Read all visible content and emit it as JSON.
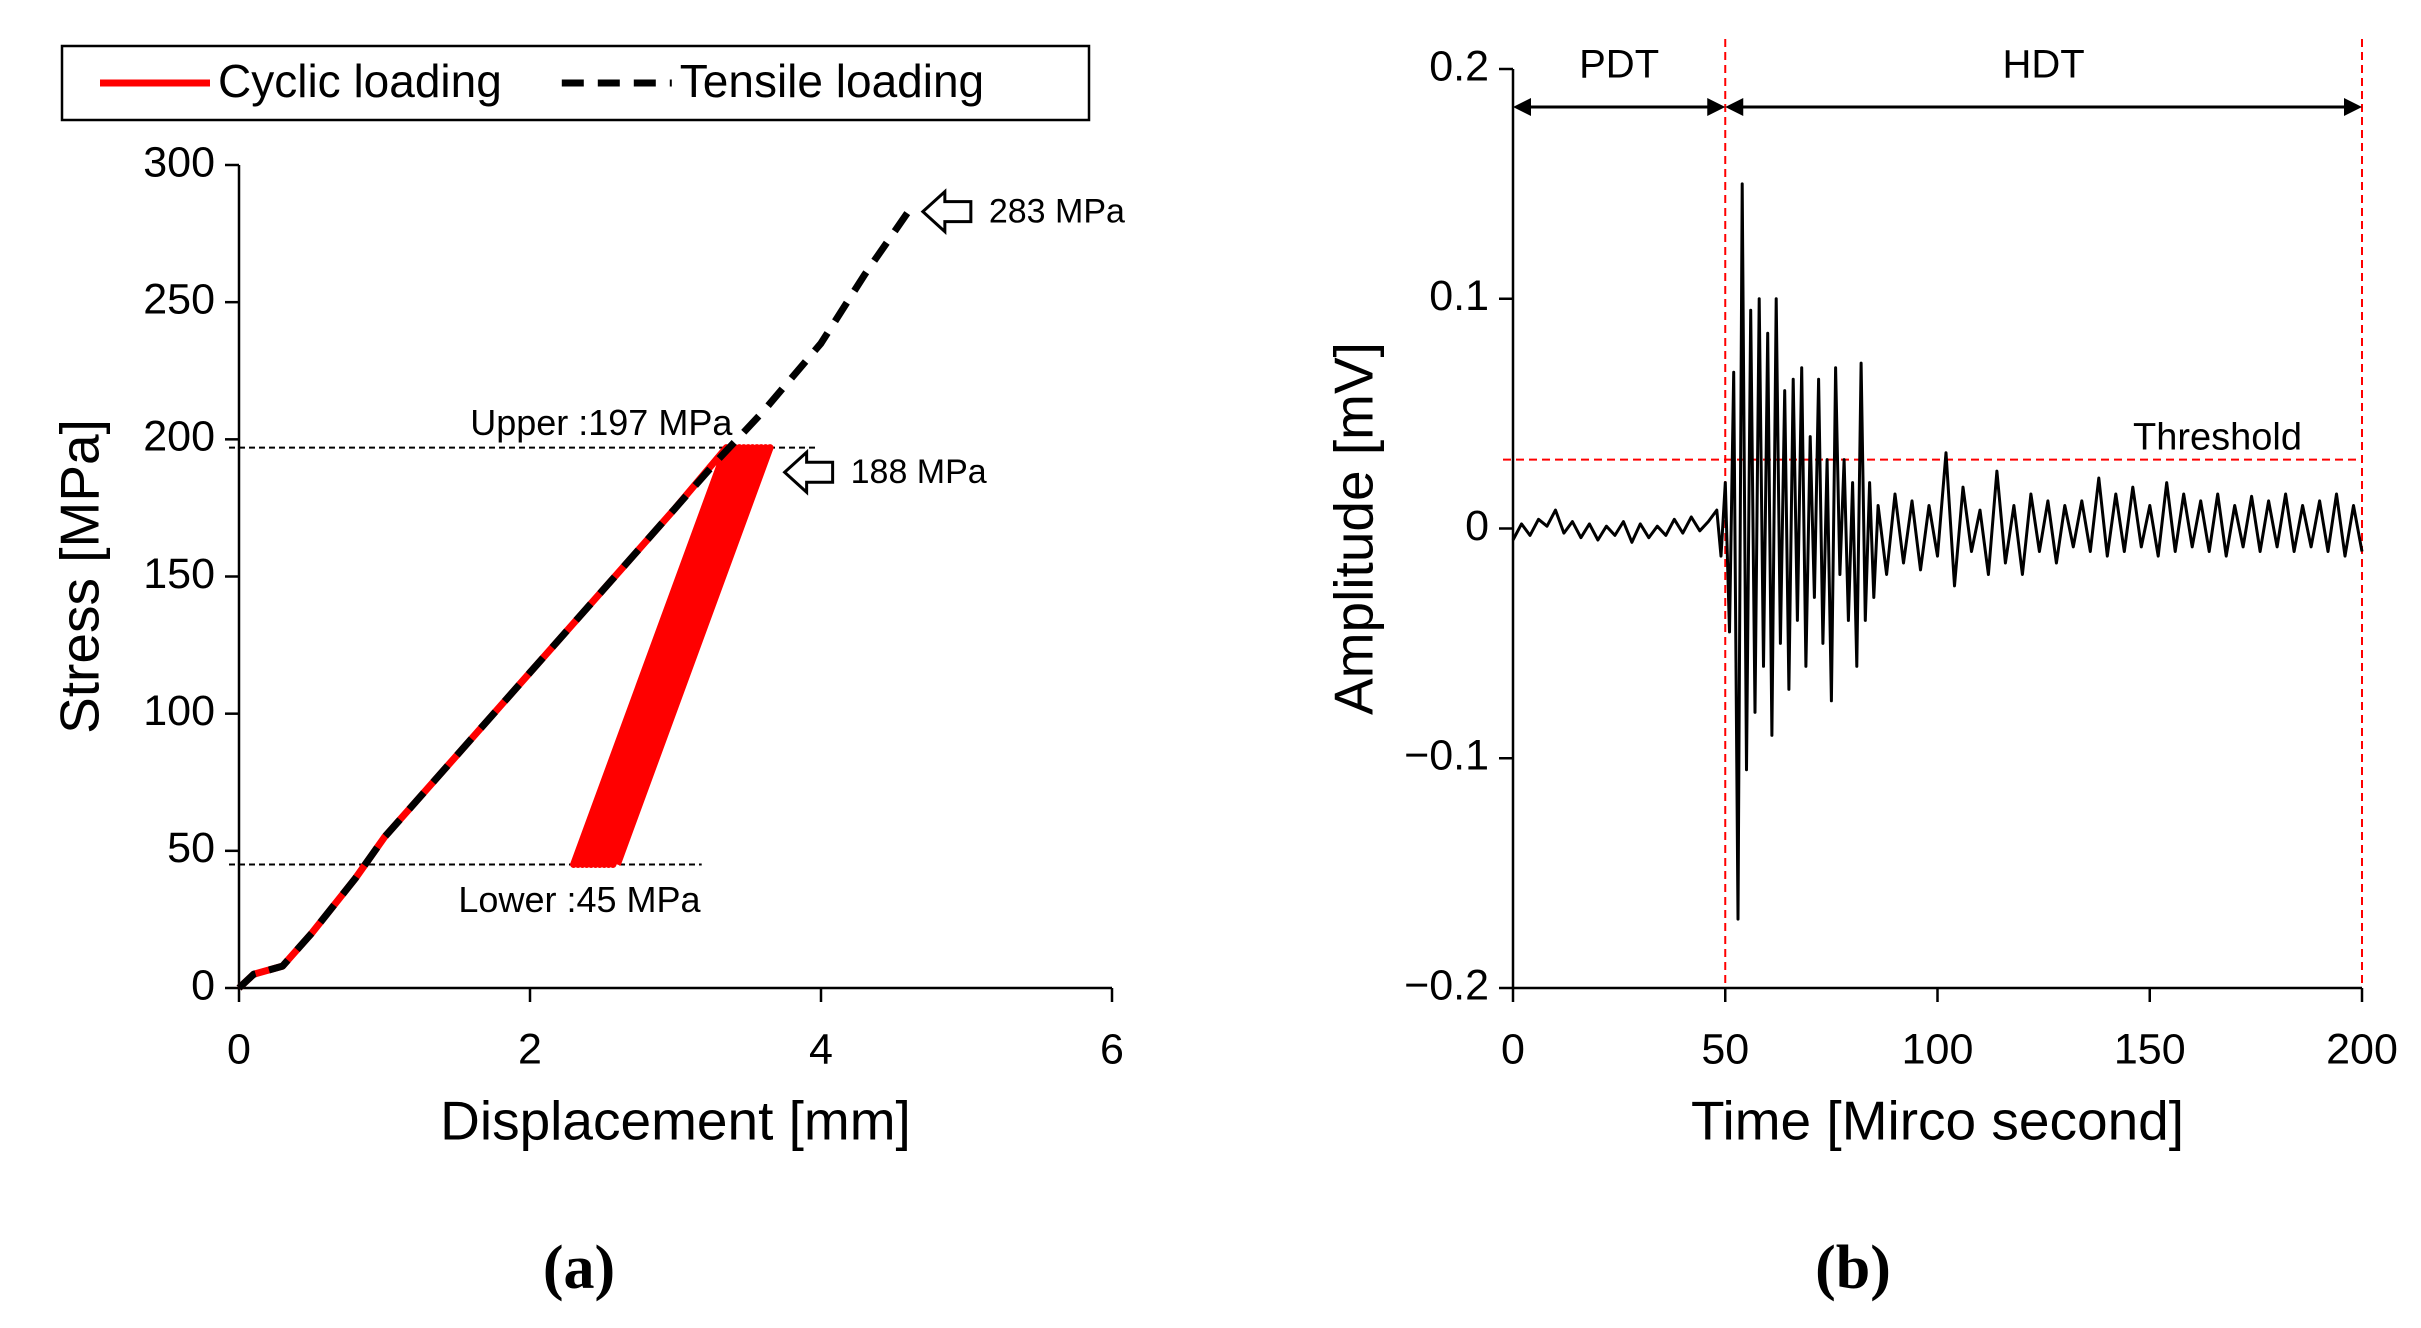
{
  "chart_data": [
    {
      "type": "line",
      "panel": "(a)",
      "xlabel": "Displacement [mm]",
      "ylabel": "Stress [MPa]",
      "xlim": [
        0,
        6
      ],
      "xticks": [
        0,
        2,
        4,
        6
      ],
      "ylim": [
        0,
        300
      ],
      "yticks": [
        0,
        50,
        100,
        150,
        200,
        250,
        300
      ],
      "legend": "top",
      "series": [
        {
          "name": "Cyclic loading",
          "color": "#ff0000",
          "line_style": "solid",
          "x": [
            0,
            0.1,
            0.3,
            0.5,
            0.8,
            1,
            1.5,
            2,
            2.5,
            3,
            3.35,
            2.3,
            3.38,
            2.33,
            3.41,
            2.36,
            3.44,
            2.39,
            3.47,
            2.42,
            3.5,
            2.45,
            3.53,
            2.48,
            3.56,
            2.51,
            3.59,
            2.54,
            3.62,
            2.57,
            3.65,
            2.6
          ],
          "values": [
            0,
            5,
            8,
            20,
            40,
            55,
            85,
            115,
            145,
            175,
            197,
            45,
            197,
            45,
            197,
            45,
            197,
            45,
            197,
            45,
            197,
            45,
            197,
            45,
            197,
            45,
            197,
            45,
            197,
            45,
            197,
            45
          ]
        },
        {
          "name": "Tensile loading",
          "color": "#000000",
          "line_style": "dashed",
          "x": [
            0,
            0.1,
            0.3,
            0.5,
            0.8,
            1,
            1.5,
            2,
            2.5,
            3,
            3.3,
            3.6,
            4,
            4.3,
            4.6
          ],
          "values": [
            0,
            5,
            8,
            20,
            40,
            55,
            85,
            115,
            145,
            175,
            193,
            210,
            235,
            260,
            283
          ]
        }
      ],
      "reference_lines": [
        {
          "value": 197,
          "label": "Upper :197 MPa",
          "color": "#000000"
        },
        {
          "value": 45,
          "label": "Lower :45 MPa",
          "color": "#000000"
        }
      ],
      "annotations": [
        {
          "text": "283 MPa",
          "x": 4.7,
          "y": 283
        },
        {
          "text": "188 MPa",
          "x": 3.75,
          "y": 188
        }
      ]
    },
    {
      "type": "line",
      "panel": "(b)",
      "xlabel": "Time [Mirco second]",
      "ylabel": "Amplitude [mV]",
      "xlim": [
        0,
        200
      ],
      "xticks": [
        0,
        50,
        100,
        150,
        200
      ],
      "ylim": [
        -0.2,
        0.2
      ],
      "yticks": [
        {
          "value": -0.2,
          "label": "−0.2"
        },
        {
          "value": -0.1,
          "label": "−0.1"
        },
        0,
        0.1,
        0.2
      ],
      "series": [
        {
          "color": "#000000",
          "line_style": "solid",
          "x": [
            0,
            2,
            4,
            6,
            8,
            10,
            12,
            14,
            16,
            18,
            20,
            22,
            24,
            26,
            28,
            30,
            32,
            34,
            36,
            38,
            40,
            42,
            44,
            46,
            48,
            49,
            50,
            51,
            52,
            53,
            54,
            55,
            56,
            57,
            58,
            59,
            60,
            61,
            62,
            63,
            64,
            65,
            66,
            67,
            68,
            69,
            70,
            71,
            72,
            73,
            74,
            75,
            76,
            77,
            78,
            79,
            80,
            81,
            82,
            83,
            84,
            85,
            86,
            88,
            90,
            92,
            94,
            96,
            98,
            100,
            102,
            104,
            106,
            108,
            110,
            112,
            114,
            116,
            118,
            120,
            122,
            124,
            126,
            128,
            130,
            132,
            134,
            136,
            138,
            140,
            142,
            144,
            146,
            148,
            150,
            152,
            154,
            156,
            158,
            160,
            162,
            164,
            166,
            168,
            170,
            172,
            174,
            176,
            178,
            180,
            182,
            184,
            186,
            188,
            190,
            192,
            194,
            196,
            198,
            200
          ],
          "values": [
            -0.005,
            0.002,
            -0.003,
            0.004,
            0.001,
            0.008,
            -0.002,
            0.003,
            -0.004,
            0.002,
            -0.005,
            0.001,
            -0.003,
            0.003,
            -0.006,
            0.002,
            -0.004,
            0.001,
            -0.003,
            0.004,
            -0.002,
            0.005,
            -0.001,
            0.003,
            0.008,
            -0.012,
            0.02,
            -0.045,
            0.068,
            -0.17,
            0.15,
            -0.105,
            0.095,
            -0.08,
            0.1,
            -0.06,
            0.085,
            -0.09,
            0.1,
            -0.05,
            0.06,
            -0.07,
            0.065,
            -0.04,
            0.07,
            -0.06,
            0.04,
            -0.03,
            0.065,
            -0.05,
            0.03,
            -0.075,
            0.07,
            -0.02,
            0.03,
            -0.04,
            0.02,
            -0.06,
            0.072,
            -0.04,
            0.02,
            -0.03,
            0.01,
            -0.02,
            0.015,
            -0.015,
            0.012,
            -0.018,
            0.01,
            -0.012,
            0.033,
            -0.025,
            0.018,
            -0.01,
            0.008,
            -0.02,
            0.025,
            -0.015,
            0.01,
            -0.02,
            0.015,
            -0.01,
            0.012,
            -0.015,
            0.01,
            -0.008,
            0.012,
            -0.01,
            0.022,
            -0.012,
            0.015,
            -0.01,
            0.018,
            -0.008,
            0.01,
            -0.012,
            0.02,
            -0.01,
            0.015,
            -0.008,
            0.012,
            -0.01,
            0.015,
            -0.012,
            0.01,
            -0.008,
            0.014,
            -0.01,
            0.012,
            -0.008,
            0.015,
            -0.01,
            0.01,
            -0.008,
            0.012,
            -0.01,
            0.015,
            -0.012,
            0.01,
            -0.01
          ]
        }
      ],
      "reference_lines": [
        {
          "value": 0.03,
          "label": "Threshold",
          "color": "#ff0000"
        }
      ],
      "vlines": [
        50,
        200
      ],
      "spans": [
        {
          "text": "PDT",
          "from": 0,
          "to": 50
        },
        {
          "text": "HDT",
          "from": 50,
          "to": 200
        }
      ]
    }
  ]
}
